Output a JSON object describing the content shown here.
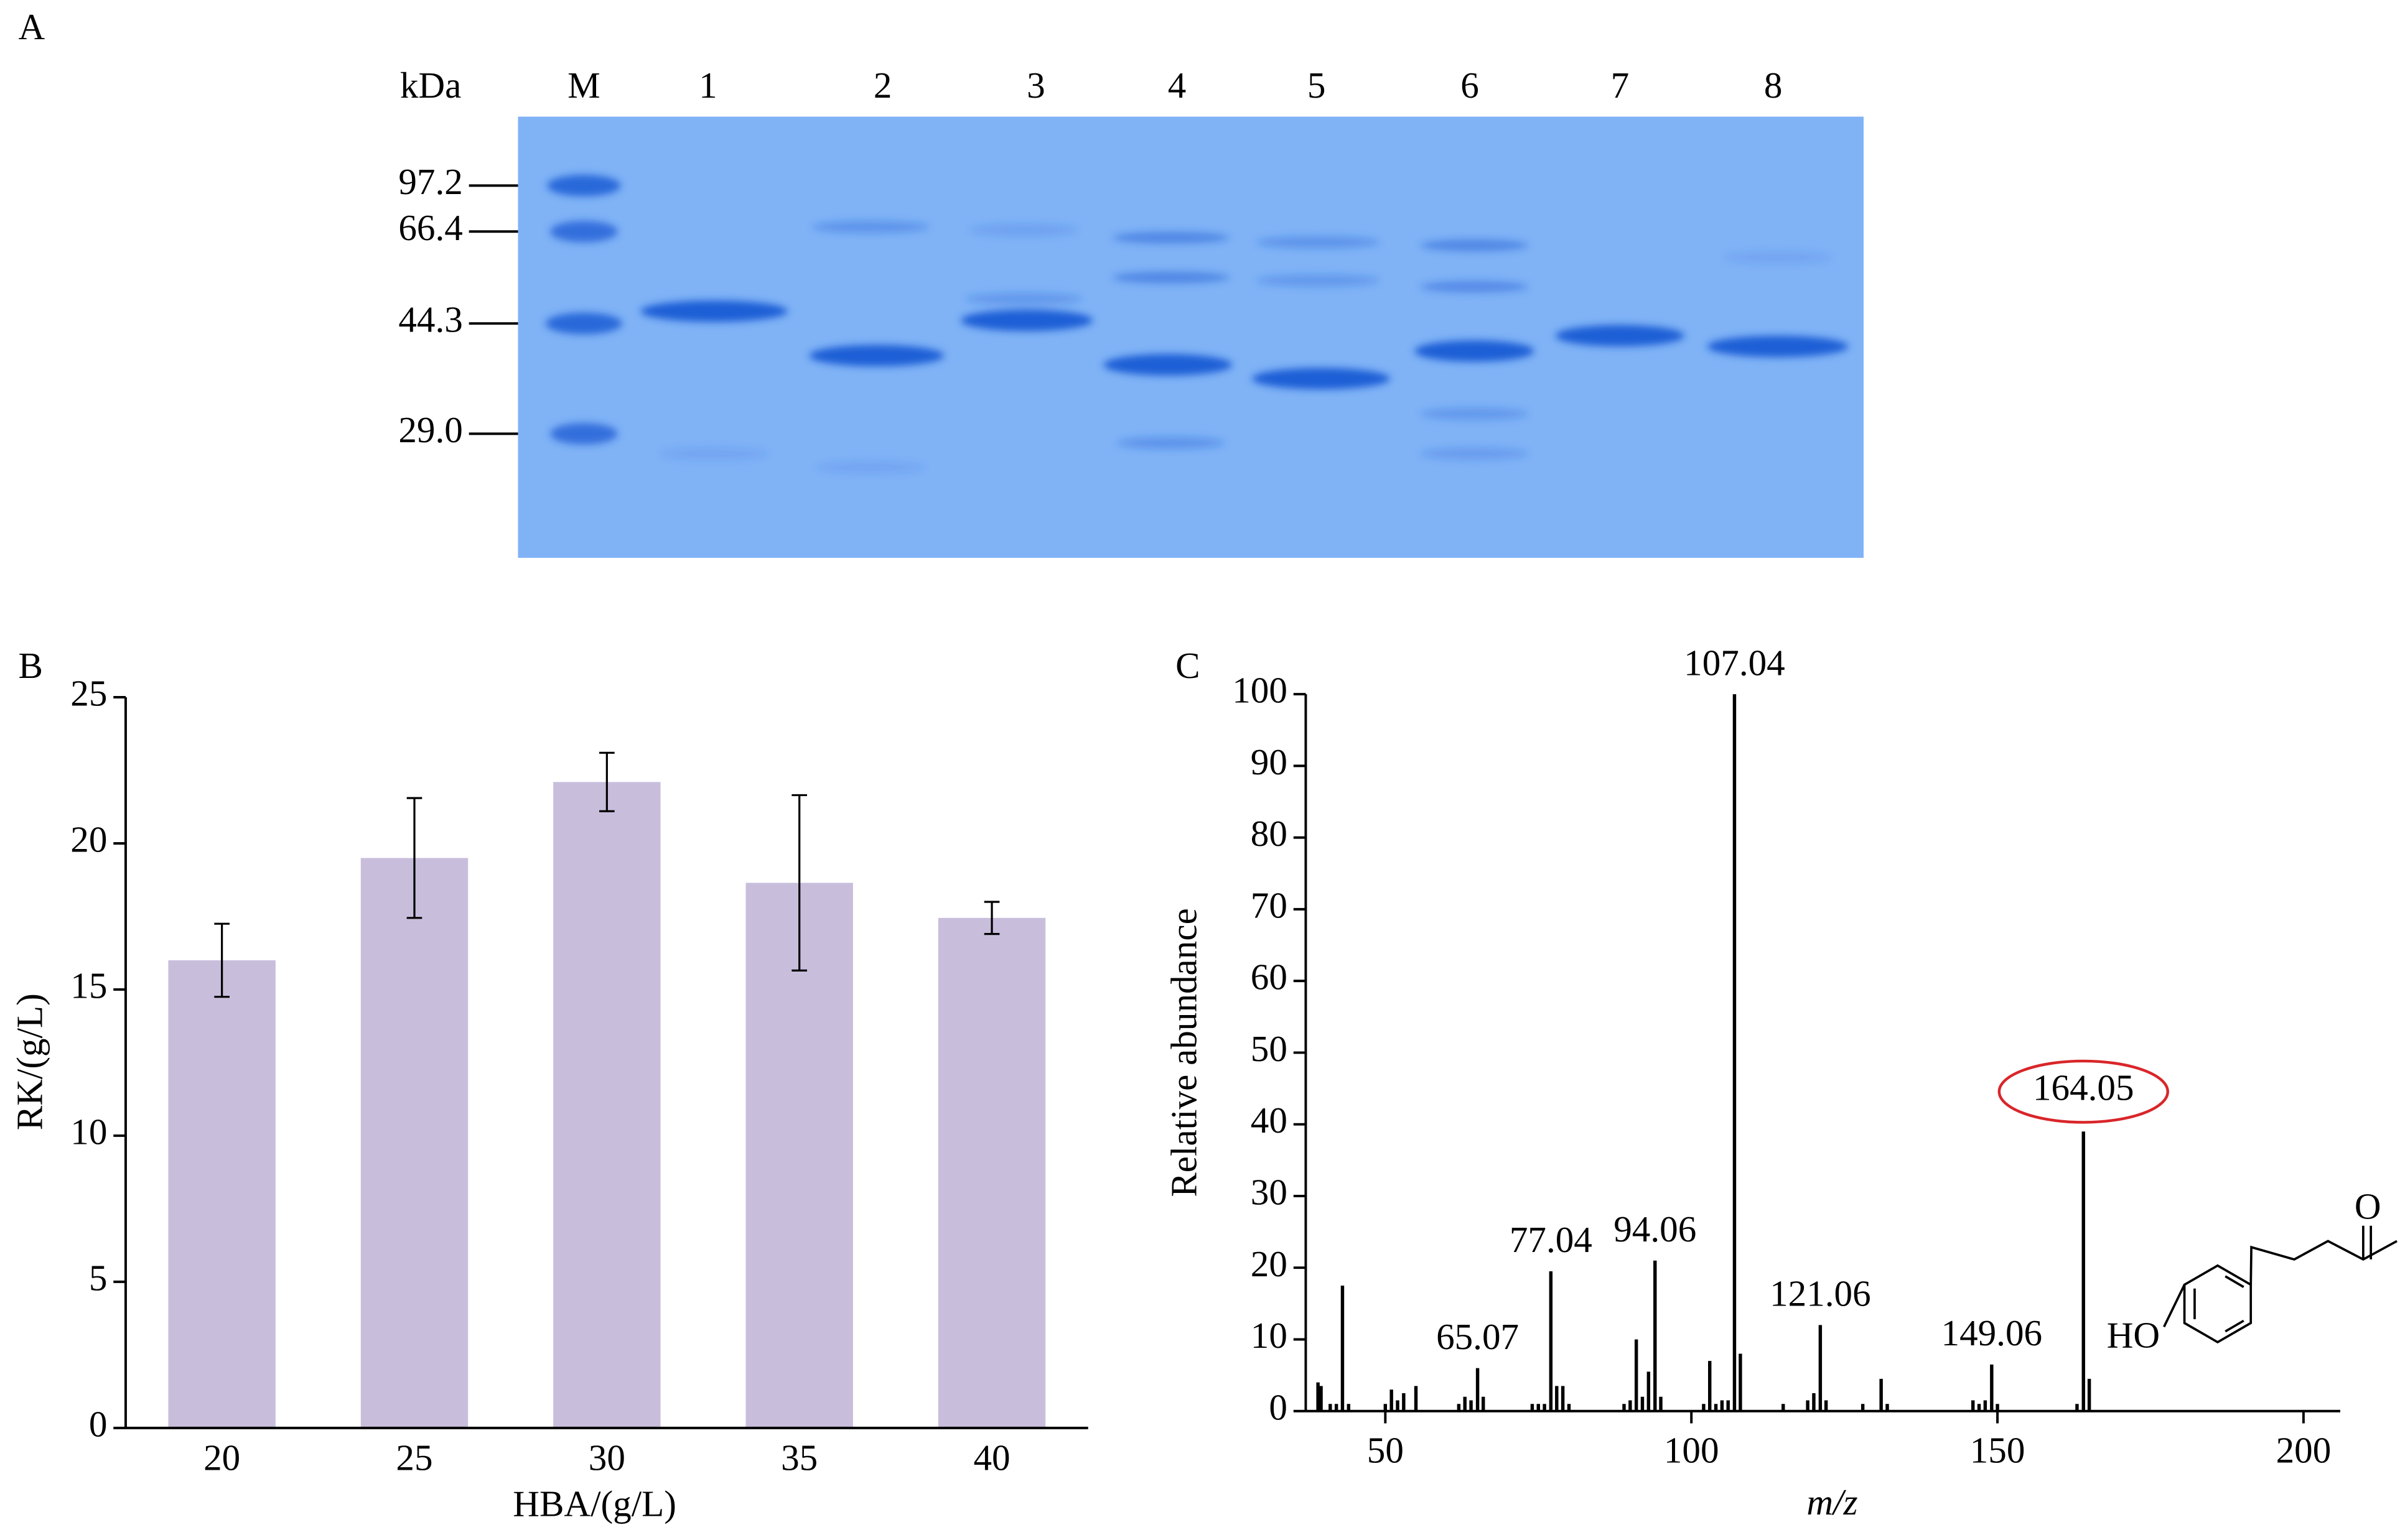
{
  "chart_data": [
    {
      "type": "gel",
      "panel": "A",
      "unit_label": "kDa",
      "lanes": [
        "M",
        "1",
        "2",
        "3",
        "4",
        "5",
        "6",
        "7",
        "8"
      ],
      "markers": [
        97.2,
        66.4,
        44.3,
        {
          "value": 29.0,
          "label": "29.0"
        }
      ]
    },
    {
      "type": "bar",
      "panel": "B",
      "categories": [
        "20",
        "25",
        "30",
        "35",
        "40"
      ],
      "values": [
        16.0,
        19.5,
        22.1,
        18.65,
        17.45
      ],
      "errors": [
        1.25,
        2.05,
        1.0,
        3.0,
        0.55
      ],
      "color": "#c8bedc",
      "xlabel": "HBA/(g/L)",
      "ylabel": "RK/(g/L)",
      "ylim": [
        0,
        25
      ],
      "yticks": [
        0,
        5,
        10,
        15,
        20,
        25
      ]
    },
    {
      "type": "stem",
      "panel": "C",
      "x": [
        39,
        39.5,
        41,
        42,
        43,
        44,
        50,
        51,
        52,
        53,
        55,
        62,
        63,
        64,
        65.07,
        66,
        74,
        75,
        76,
        77.04,
        78,
        79,
        80,
        89,
        90,
        91,
        92,
        93,
        94.06,
        95,
        102,
        103,
        104,
        105,
        106,
        107.04,
        108,
        115,
        119,
        120,
        121.06,
        122,
        128,
        131,
        132,
        146,
        147,
        148,
        149.06,
        150,
        163,
        164.05,
        165
      ],
      "values": [
        4,
        3.5,
        1,
        1,
        17.5,
        1,
        1,
        3,
        1.5,
        2.5,
        3.5,
        1,
        2,
        1.5,
        6,
        2,
        1,
        1,
        1,
        19.5,
        3.5,
        3.5,
        1,
        1,
        1.5,
        10,
        2,
        5.5,
        21,
        2,
        1,
        7,
        1,
        1.5,
        1.5,
        100,
        8,
        1,
        1.5,
        2.5,
        12,
        1.5,
        1,
        4.5,
        1,
        1.5,
        1,
        1.5,
        6.5,
        1,
        1,
        39,
        4.5
      ],
      "peak_labels": [
        null,
        null,
        null,
        null,
        null,
        null,
        null,
        null,
        null,
        null,
        null,
        null,
        null,
        null,
        "65.07",
        null,
        null,
        null,
        null,
        "77.04",
        null,
        null,
        null,
        null,
        null,
        null,
        null,
        null,
        "94.06",
        null,
        null,
        null,
        null,
        null,
        null,
        "107.04",
        null,
        null,
        null,
        null,
        "121.06",
        null,
        null,
        null,
        null,
        null,
        null,
        null,
        "149.06",
        null,
        null,
        "164.05",
        null
      ],
      "color": "#000000",
      "circled_peak": 164.05,
      "circle_color": "#d9262a",
      "xlabel": "m/z",
      "ylabel": "Relative abundance",
      "xlim": [
        37,
        206
      ],
      "ylim": [
        0,
        100
      ],
      "xticks": [
        50,
        100,
        150,
        200
      ],
      "yticks": [
        0,
        10,
        20,
        30,
        40,
        50,
        60,
        70,
        80,
        90,
        100
      ],
      "structure_labels": [
        "O",
        "HO"
      ]
    }
  ]
}
